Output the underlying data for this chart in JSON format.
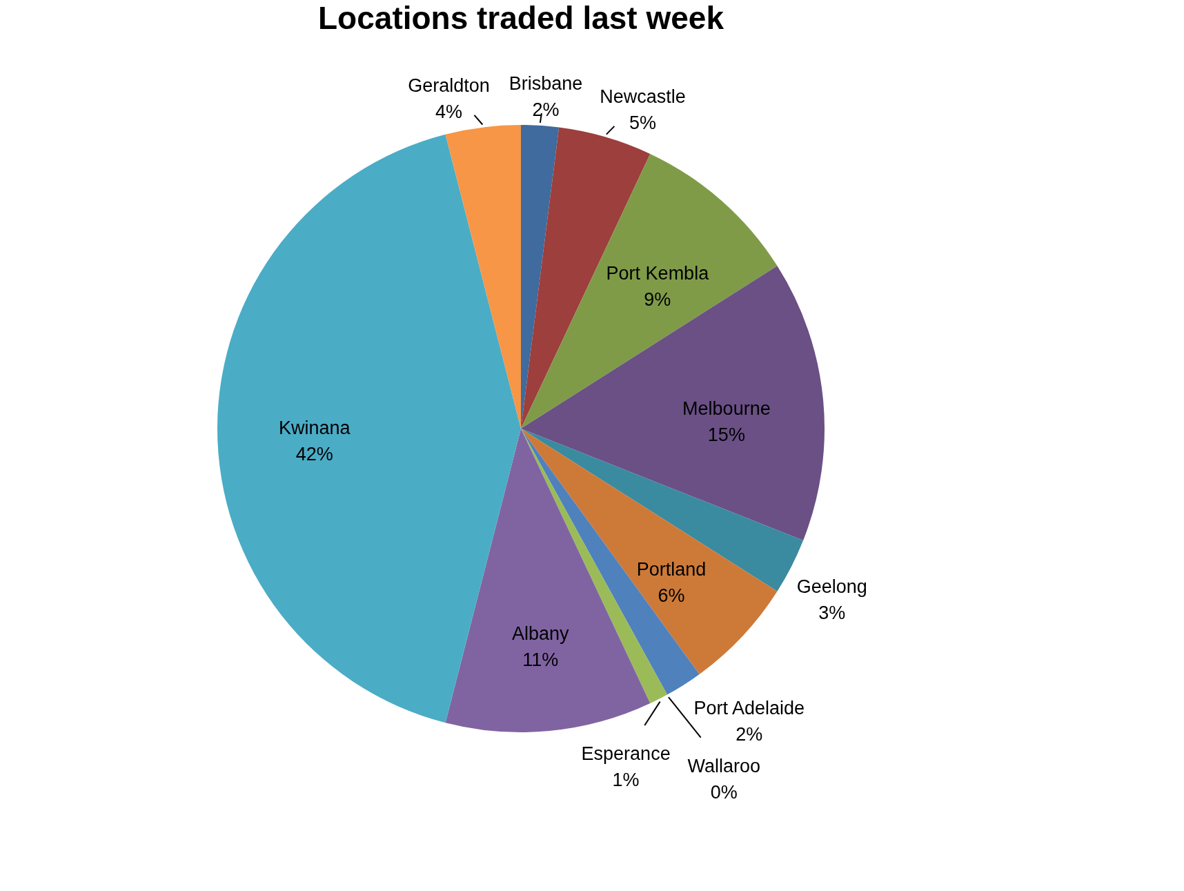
{
  "chart_data": {
    "type": "pie",
    "title": "Locations traded last week",
    "categories": [
      "Brisbane",
      "Newcastle",
      "Port Kembla",
      "Melbourne",
      "Geelong",
      "Portland",
      "Port Adelaide",
      "Wallaroo",
      "Esperance",
      "Albany",
      "Kwinana",
      "Geraldton"
    ],
    "values": [
      2,
      5,
      9,
      15,
      3,
      6,
      2,
      0,
      1,
      11,
      42,
      4
    ],
    "value_labels": [
      "2%",
      "5%",
      "9%",
      "15%",
      "3%",
      "6%",
      "2%",
      "0%",
      "1%",
      "11%",
      "42%",
      "4%"
    ],
    "colors": [
      "#3f6b9e",
      "#9c3f3d",
      "#7f9b48",
      "#6a5085",
      "#3a8aa0",
      "#cd7a38",
      "#4f81bd",
      "#c0504d",
      "#9bbb59",
      "#8064a2",
      "#4bacc6",
      "#f79646"
    ],
    "legend": false
  }
}
